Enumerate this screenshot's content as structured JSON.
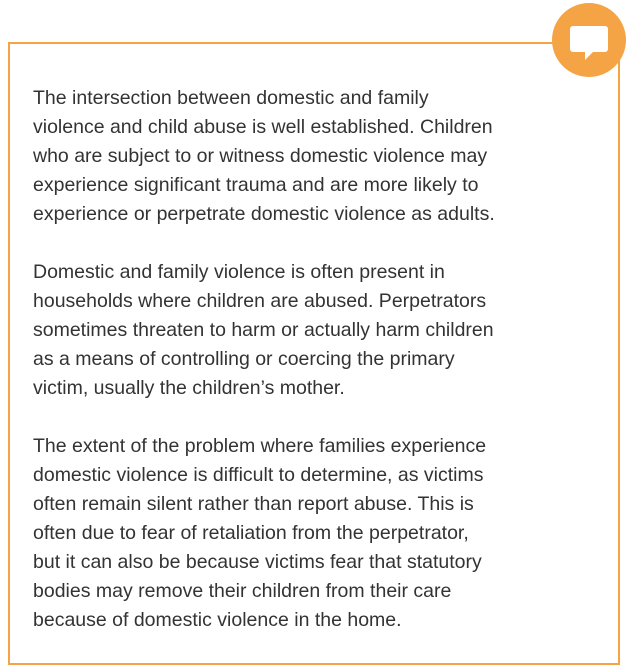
{
  "callout": {
    "paragraphs": [
      [
        "The intersection between domestic and family",
        "violence and child abuse is well established. Children",
        "who are subject to or witness domestic violence may",
        "experience significant trauma and are more likely to",
        "experience or perpetrate domestic violence as adults."
      ],
      [
        "Domestic and family violence is often present in",
        "households where children are abused. Perpetrators",
        "sometimes threaten to harm or actually harm children",
        "as a means of controlling or coercing the primary",
        "victim, usually the children’s mother."
      ],
      [
        "The extent of the problem where families experience",
        "domestic violence is difficult to determine, as victims",
        "often remain silent rather than report abuse. This is",
        "often due to fear of retaliation from the perpetrator,",
        "but it can also be because victims fear that statutory",
        "bodies may remove their children from their care",
        "because of domestic violence in the home."
      ]
    ]
  }
}
